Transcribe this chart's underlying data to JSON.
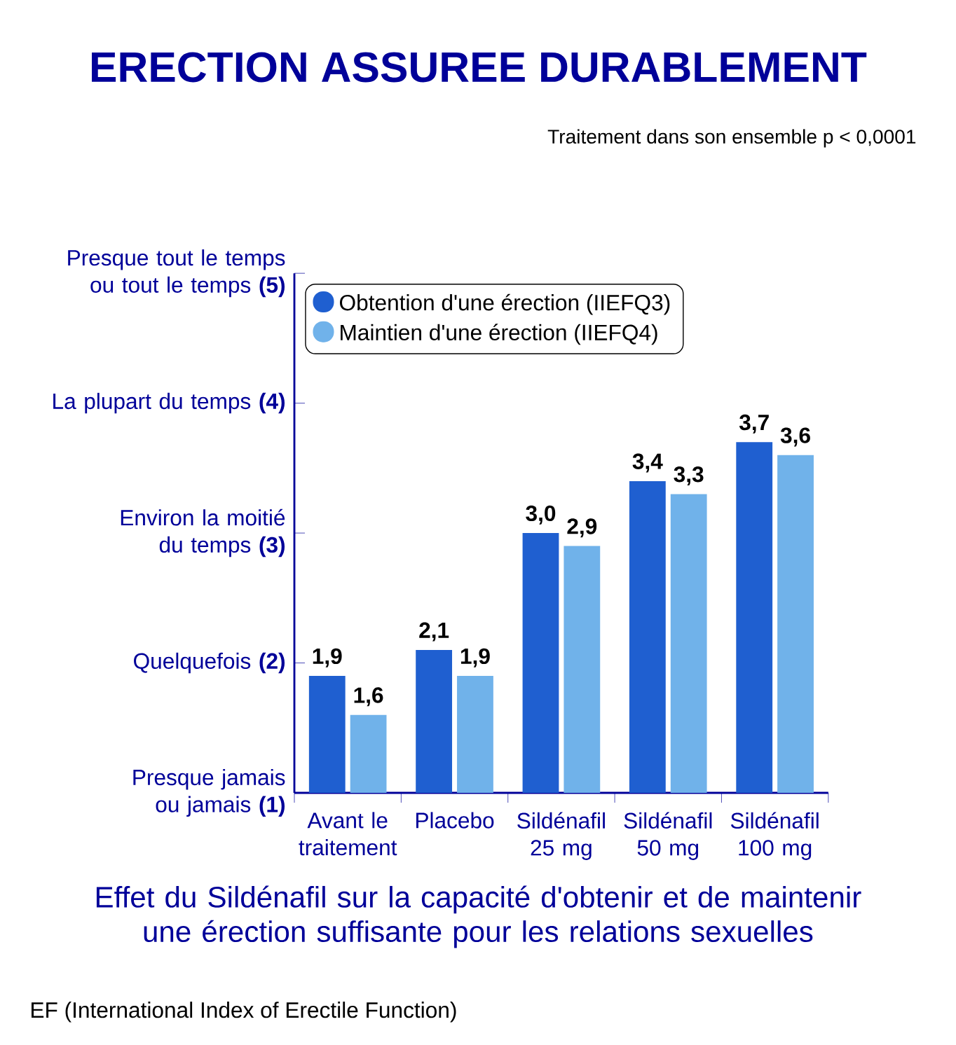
{
  "chart_data": {
    "type": "bar",
    "title": "ERECTION ASSUREE DURABLEMENT",
    "subtitle": "Effet du Sildénafil sur la capacité d'obtenir et de maintenir une érection suffisante pour les relations sexuelles",
    "annotations": [
      "Traitement dans son ensemble p < 0,0001",
      "EF (International Index of Erectile Function)"
    ],
    "categories": [
      "Avant le traitement",
      "Placebo",
      "Sildénafil 25 mg",
      "Sildénafil 50 mg",
      "Sildénafil 100 mg"
    ],
    "series": [
      {
        "name": "Obtention d'une érection (IIEFQ3)",
        "color": "#1f5fd0",
        "values": [
          1.9,
          2.1,
          3.0,
          3.4,
          3.7
        ],
        "value_labels": [
          "1,9",
          "2,1",
          "3,0",
          "3,4",
          "3,7"
        ]
      },
      {
        "name": "Maintien d'une érection (IIEFQ4)",
        "color": "#70b2ea",
        "values": [
          1.6,
          1.9,
          2.9,
          3.3,
          3.6
        ],
        "value_labels": [
          "1,6",
          "1,9",
          "2,9",
          "3,3",
          "3,6"
        ]
      }
    ],
    "ylim": [
      1,
      5
    ],
    "yticks": [
      {
        "value": 1,
        "label": "Presque jamais ou jamais **(1)**"
      },
      {
        "value": 2,
        "label": "Quelquefois **(2)**"
      },
      {
        "value": 3,
        "label": "Environ la moitié du temps **(3)**"
      },
      {
        "value": 4,
        "label": "La plupart du temps **(4)**"
      },
      {
        "value": 5,
        "label": "Presque tout le temps ou tout le temps **(5)**"
      }
    ],
    "legend": "top left"
  }
}
